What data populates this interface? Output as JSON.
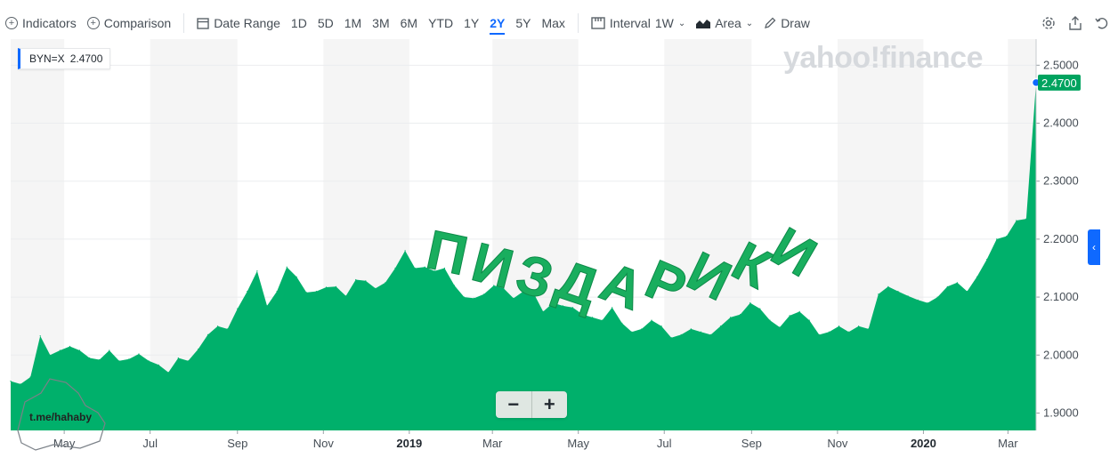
{
  "toolbar": {
    "indicators": "Indicators",
    "comparison": "Comparison",
    "date_range": "Date Range",
    "ranges": [
      "1D",
      "5D",
      "1M",
      "3M",
      "6M",
      "YTD",
      "1Y",
      "2Y",
      "5Y",
      "Max"
    ],
    "active_range": "2Y",
    "interval_label": "Interval",
    "interval_value": "1W",
    "chart_type": "Area",
    "draw": "Draw"
  },
  "legend": {
    "symbol": "BYN=X",
    "value": "2.4700"
  },
  "last_price_label": "2.4700",
  "watermark": "yahoo!finance",
  "telegram_tag": "t.me/hahaby",
  "overlay_text": "ПИЗДАРИКИ",
  "colors": {
    "area": "#00b06b",
    "accent": "#0f69ff",
    "badge": "#00a35f",
    "band": "#f5f5f5"
  },
  "chart_data": {
    "type": "area",
    "x": [
      "2018-03-24",
      "2018-03-31",
      "2018-04-07",
      "2018-04-14",
      "2018-04-21",
      "2018-04-28",
      "2018-05-05",
      "2018-05-12",
      "2018-05-19",
      "2018-05-26",
      "2018-06-02",
      "2018-06-09",
      "2018-06-16",
      "2018-06-23",
      "2018-06-30",
      "2018-07-07",
      "2018-07-14",
      "2018-07-21",
      "2018-07-28",
      "2018-08-04",
      "2018-08-11",
      "2018-08-18",
      "2018-08-25",
      "2018-09-01",
      "2018-09-08",
      "2018-09-15",
      "2018-09-22",
      "2018-09-29",
      "2018-10-06",
      "2018-10-13",
      "2018-10-20",
      "2018-10-27",
      "2018-11-03",
      "2018-11-10",
      "2018-11-17",
      "2018-11-24",
      "2018-12-01",
      "2018-12-08",
      "2018-12-15",
      "2018-12-22",
      "2018-12-29",
      "2019-01-05",
      "2019-01-12",
      "2019-01-19",
      "2019-01-26",
      "2019-02-02",
      "2019-02-09",
      "2019-02-16",
      "2019-02-23",
      "2019-03-02",
      "2019-03-09",
      "2019-03-16",
      "2019-03-23",
      "2019-03-30",
      "2019-04-06",
      "2019-04-13",
      "2019-04-20",
      "2019-04-27",
      "2019-05-04",
      "2019-05-11",
      "2019-05-18",
      "2019-05-25",
      "2019-06-01",
      "2019-06-08",
      "2019-06-15",
      "2019-06-22",
      "2019-06-29",
      "2019-07-06",
      "2019-07-13",
      "2019-07-20",
      "2019-07-27",
      "2019-08-03",
      "2019-08-10",
      "2019-08-17",
      "2019-08-24",
      "2019-08-31",
      "2019-09-07",
      "2019-09-14",
      "2019-09-21",
      "2019-09-28",
      "2019-10-05",
      "2019-10-12",
      "2019-10-19",
      "2019-10-26",
      "2019-11-02",
      "2019-11-09",
      "2019-11-16",
      "2019-11-23",
      "2019-11-30",
      "2019-12-07",
      "2019-12-14",
      "2019-12-21",
      "2019-12-28",
      "2020-01-04",
      "2020-01-11",
      "2020-01-18",
      "2020-01-25",
      "2020-02-01",
      "2020-02-08",
      "2020-02-15",
      "2020-02-22",
      "2020-02-29",
      "2020-03-07",
      "2020-03-14",
      "2020-03-21"
    ],
    "values": [
      1.955,
      1.95,
      1.962,
      2.033,
      2.0,
      2.008,
      2.015,
      2.008,
      1.995,
      1.992,
      2.008,
      1.99,
      1.993,
      2.002,
      1.99,
      1.983,
      1.97,
      1.995,
      1.99,
      2.01,
      2.035,
      2.05,
      2.045,
      2.08,
      2.11,
      2.145,
      2.085,
      2.11,
      2.152,
      2.135,
      2.108,
      2.11,
      2.117,
      2.118,
      2.102,
      2.13,
      2.128,
      2.115,
      2.125,
      2.15,
      2.18,
      2.15,
      2.152,
      2.145,
      2.15,
      2.12,
      2.1,
      2.098,
      2.105,
      2.12,
      2.115,
      2.098,
      2.11,
      2.108,
      2.075,
      2.09,
      2.085,
      2.082,
      2.07,
      2.065,
      2.06,
      2.082,
      2.055,
      2.04,
      2.045,
      2.06,
      2.05,
      2.03,
      2.035,
      2.045,
      2.04,
      2.035,
      2.05,
      2.065,
      2.07,
      2.09,
      2.08,
      2.06,
      2.048,
      2.068,
      2.075,
      2.06,
      2.035,
      2.04,
      2.05,
      2.04,
      2.05,
      2.045,
      2.105,
      2.118,
      2.11,
      2.102,
      2.095,
      2.09,
      2.1,
      2.118,
      2.125,
      2.11,
      2.135,
      2.165,
      2.2,
      2.205,
      2.232,
      2.235,
      2.47
    ],
    "y_ticks": [
      "2.5000",
      "2.4000",
      "2.3000",
      "2.2000",
      "2.1000",
      "2.0000",
      "1.9000"
    ],
    "x_ticks": [
      "May",
      "Jul",
      "Sep",
      "Nov",
      "2019",
      "Mar",
      "May",
      "Jul",
      "Sep",
      "Nov",
      "2020",
      "Mar"
    ],
    "x_tick_dates": [
      "2018-05-01",
      "2018-07-01",
      "2018-09-01",
      "2018-11-01",
      "2019-01-01",
      "2019-03-01",
      "2019-05-01",
      "2019-07-01",
      "2019-09-01",
      "2019-11-01",
      "2020-01-01",
      "2020-03-01"
    ],
    "ylim": [
      1.87,
      2.545
    ],
    "grid": true,
    "legend": "top-left"
  }
}
